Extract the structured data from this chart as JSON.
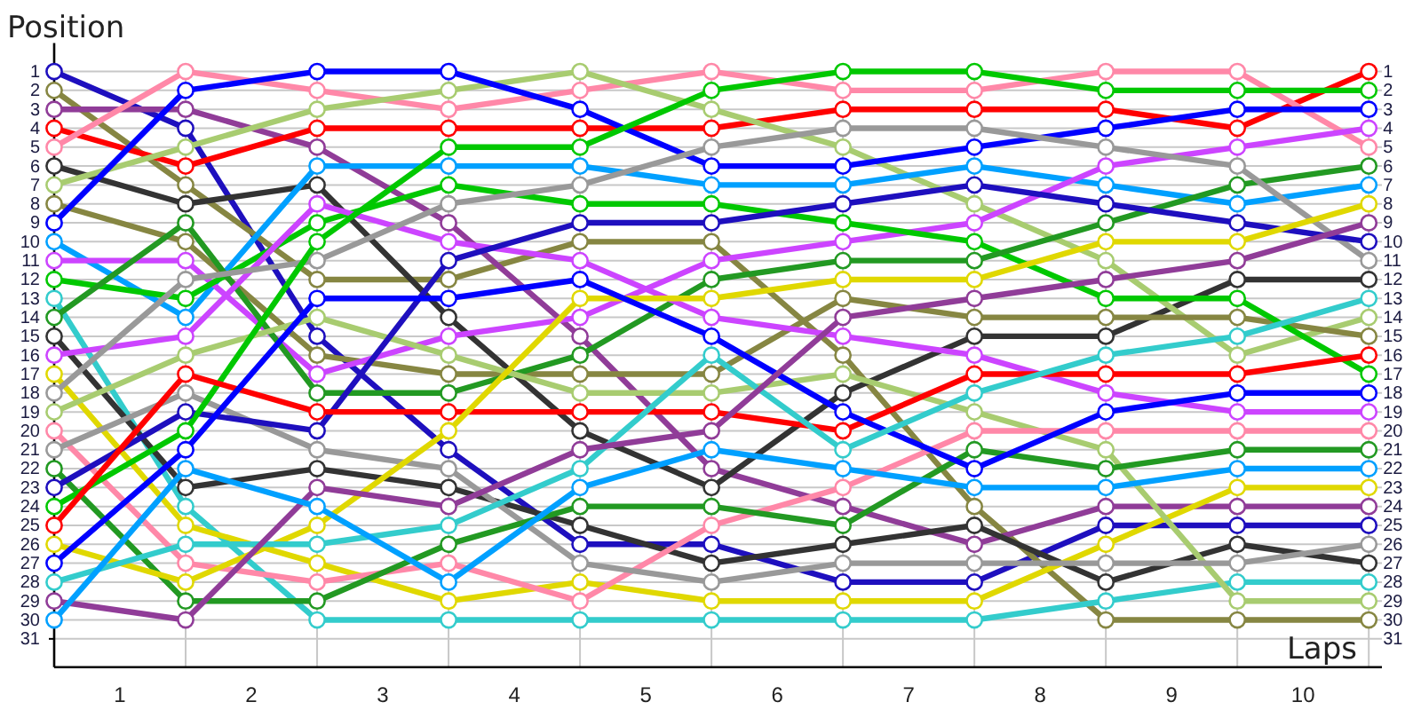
{
  "chart_data": {
    "type": "line",
    "xlabel": "Laps",
    "ylabel": "Position",
    "x": [
      0,
      1,
      2,
      3,
      4,
      5,
      6,
      7,
      8,
      9,
      10
    ],
    "xlim": [
      0,
      10.1
    ],
    "xticks": [
      {
        "value": 0,
        "label": null
      },
      {
        "value": 0.5,
        "label": "1"
      },
      {
        "value": 1,
        "label": null
      },
      {
        "value": 1.5,
        "label": "2"
      },
      {
        "value": 2,
        "label": null
      },
      {
        "value": 2.5,
        "label": "3"
      },
      {
        "value": 3,
        "label": null
      },
      {
        "value": 3.5,
        "label": "4"
      },
      {
        "value": 4,
        "label": null
      },
      {
        "value": 4.5,
        "label": "5"
      },
      {
        "value": 5,
        "label": null
      },
      {
        "value": 5.5,
        "label": "6"
      },
      {
        "value": 6,
        "label": null
      },
      {
        "value": 6.5,
        "label": "7"
      },
      {
        "value": 7,
        "label": null
      },
      {
        "value": 7.5,
        "label": "8"
      },
      {
        "value": 8,
        "label": null
      },
      {
        "value": 8.5,
        "label": "9"
      },
      {
        "value": 9,
        "label": null
      },
      {
        "value": 9.5,
        "label": "10"
      },
      {
        "value": 10,
        "label": null
      }
    ],
    "ylim": [
      32.5,
      -0.5
    ],
    "yticks": [
      1,
      2,
      3,
      4,
      5,
      6,
      7,
      8,
      9,
      10,
      11,
      12,
      13,
      14,
      15,
      16,
      17,
      18,
      19,
      20,
      21,
      22,
      23,
      24,
      25,
      26,
      27,
      28,
      29,
      30,
      31
    ],
    "y2lim": [
      32.5,
      -0.5
    ],
    "y2ticks": [
      1,
      2,
      3,
      4,
      5,
      6,
      7,
      8,
      9,
      10,
      11,
      12,
      13,
      14,
      15,
      16,
      17,
      18,
      19,
      20,
      21,
      22,
      23,
      24,
      25,
      26,
      27,
      28,
      29,
      30,
      31
    ],
    "grid": true,
    "marker": "circle",
    "line_style": "solid",
    "series": [
      {
        "color": "#1e0fbe",
        "values": [
          1,
          4,
          15,
          21,
          26,
          26,
          28,
          28,
          25,
          25,
          25
        ]
      },
      {
        "color": "#868642",
        "values": [
          2,
          7,
          12,
          12,
          10,
          10,
          16,
          24,
          30,
          30,
          30
        ]
      },
      {
        "color": "#903c98",
        "values": [
          3,
          3,
          5,
          9,
          15,
          22,
          24,
          26,
          24,
          24,
          24
        ]
      },
      {
        "color": "#ff0000",
        "values": [
          4,
          6,
          4,
          4,
          4,
          4,
          3,
          3,
          3,
          4,
          1
        ]
      },
      {
        "color": "#ff88a8",
        "values": [
          5,
          1,
          2,
          3,
          2,
          1,
          2,
          2,
          1,
          1,
          5
        ]
      },
      {
        "color": "#333333",
        "values": [
          6,
          8,
          7,
          14,
          20,
          23,
          18,
          15,
          15,
          12,
          12
        ]
      },
      {
        "color": "#a8cc70",
        "values": [
          7,
          5,
          3,
          2,
          1,
          3,
          5,
          8,
          11,
          16,
          14
        ]
      },
      {
        "color": "#868642",
        "values": [
          8,
          10,
          16,
          17,
          17,
          17,
          13,
          14,
          14,
          14,
          15
        ]
      },
      {
        "color": "#0000ff",
        "values": [
          9,
          2,
          1,
          1,
          3,
          6,
          6,
          5,
          4,
          3,
          3
        ]
      },
      {
        "color": "#00a0ff",
        "values": [
          10,
          14,
          6,
          6,
          6,
          7,
          7,
          6,
          7,
          8,
          7
        ]
      },
      {
        "color": "#cc44ff",
        "values": [
          11,
          11,
          17,
          15,
          14,
          11,
          10,
          9,
          6,
          5,
          4
        ]
      },
      {
        "color": "#00c800",
        "values": [
          12,
          13,
          9,
          7,
          8,
          8,
          9,
          10,
          13,
          13,
          17
        ]
      },
      {
        "color": "#33cccc",
        "values": [
          13,
          24,
          30,
          30,
          30,
          30,
          30,
          30,
          29,
          28,
          28
        ]
      },
      {
        "color": "#229922",
        "values": [
          14,
          9,
          18,
          18,
          16,
          12,
          11,
          11,
          9,
          7,
          6
        ]
      },
      {
        "color": "#333333",
        "values": [
          15,
          23,
          22,
          23,
          25,
          27,
          26,
          25,
          28,
          26,
          27
        ]
      },
      {
        "color": "#cc44ff",
        "values": [
          16,
          15,
          8,
          10,
          11,
          14,
          15,
          16,
          18,
          19,
          19
        ]
      },
      {
        "color": "#e0d800",
        "values": [
          17,
          25,
          27,
          29,
          28,
          29,
          29,
          29,
          26,
          23,
          23
        ]
      },
      {
        "color": "#999999",
        "values": [
          18,
          12,
          11,
          8,
          7,
          5,
          4,
          4,
          5,
          6,
          11
        ]
      },
      {
        "color": "#a8cc70",
        "values": [
          19,
          16,
          14,
          16,
          18,
          18,
          17,
          19,
          21,
          29,
          29
        ]
      },
      {
        "color": "#ff88a8",
        "values": [
          20,
          27,
          28,
          27,
          29,
          25,
          23,
          20,
          20,
          20,
          20
        ]
      },
      {
        "color": "#999999",
        "values": [
          21,
          18,
          21,
          22,
          27,
          28,
          27,
          27,
          27,
          27,
          26
        ]
      },
      {
        "color": "#229922",
        "values": [
          22,
          29,
          29,
          26,
          24,
          24,
          25,
          21,
          22,
          21,
          21
        ]
      },
      {
        "color": "#1e0fbe",
        "values": [
          23,
          19,
          20,
          11,
          9,
          9,
          8,
          7,
          8,
          9,
          10
        ]
      },
      {
        "color": "#00c800",
        "values": [
          24,
          20,
          10,
          5,
          5,
          2,
          1,
          1,
          2,
          2,
          2
        ]
      },
      {
        "color": "#ff0000",
        "values": [
          25,
          17,
          19,
          19,
          19,
          19,
          20,
          17,
          17,
          17,
          16
        ]
      },
      {
        "color": "#e0d800",
        "values": [
          26,
          28,
          25,
          20,
          13,
          13,
          12,
          12,
          10,
          10,
          8
        ]
      },
      {
        "color": "#0000ff",
        "values": [
          27,
          21,
          13,
          13,
          12,
          15,
          19,
          22,
          19,
          18,
          18
        ]
      },
      {
        "color": "#33cccc",
        "values": [
          28,
          26,
          26,
          25,
          22,
          16,
          21,
          18,
          16,
          15,
          13
        ]
      },
      {
        "color": "#903c98",
        "values": [
          29,
          30,
          23,
          24,
          21,
          20,
          14,
          13,
          12,
          11,
          9
        ]
      },
      {
        "color": "#00a0ff",
        "values": [
          30,
          22,
          24,
          28,
          23,
          21,
          22,
          23,
          23,
          22,
          22
        ]
      }
    ]
  }
}
